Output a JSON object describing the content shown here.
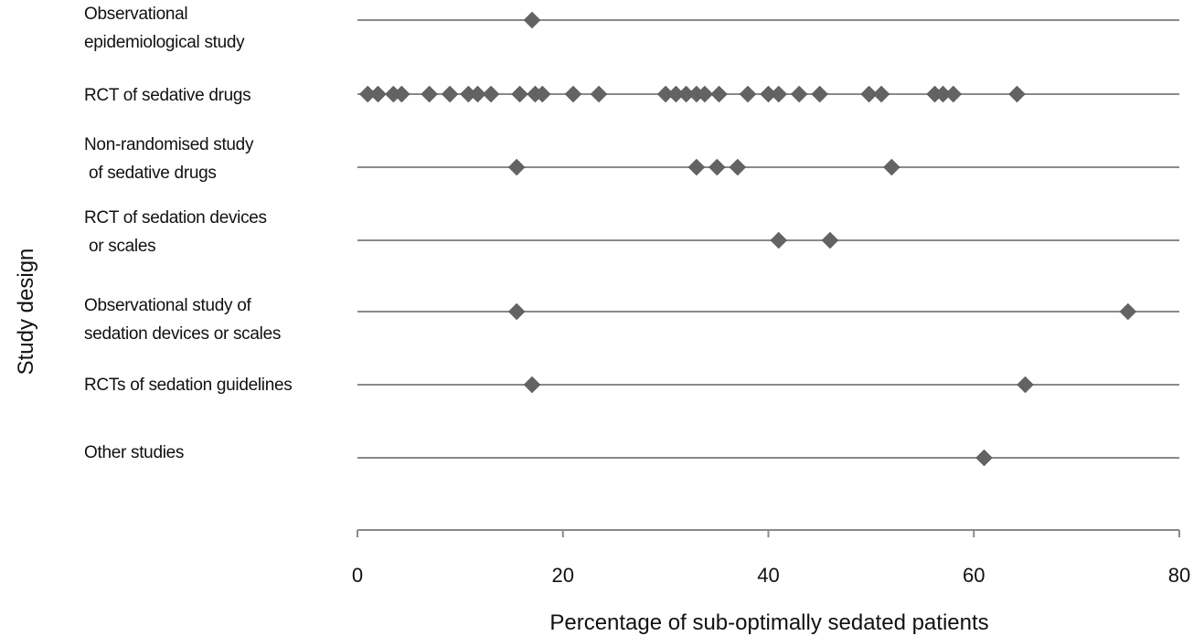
{
  "chart_data": {
    "type": "scatter",
    "xlabel": "Percentage of sub-optimally sedated patients",
    "ylabel": "Study design",
    "xlim": [
      0,
      80
    ],
    "xticks": [
      0,
      20,
      40,
      60,
      80
    ],
    "grid": false,
    "categories": [
      {
        "label_lines": [
          "Observational",
          "epidemiological study"
        ]
      },
      {
        "label_lines": [
          "RCT of sedative drugs"
        ]
      },
      {
        "label_lines": [
          "Non-randomised study",
          " of sedative drugs"
        ]
      },
      {
        "label_lines": [
          "RCT of sedation devices",
          " or scales"
        ]
      },
      {
        "label_lines": [
          "Observational study of",
          "sedation devices or scales"
        ]
      },
      {
        "label_lines": [
          "RCTs of sedation guidelines"
        ]
      },
      {
        "label_lines": [
          "Other studies"
        ]
      }
    ],
    "series": [
      {
        "category_index": 0,
        "values": [
          17
        ]
      },
      {
        "category_index": 1,
        "values": [
          1,
          2,
          3.5,
          4.3,
          7,
          9,
          10.8,
          11.7,
          13,
          15.8,
          17.3,
          18,
          21,
          23.5,
          30,
          31,
          32,
          33,
          33.8,
          35.2,
          38,
          40,
          41,
          43,
          45,
          49.8,
          51,
          56.2,
          57,
          58,
          64.2
        ]
      },
      {
        "category_index": 2,
        "values": [
          15.5,
          33,
          35,
          37,
          52
        ]
      },
      {
        "category_index": 3,
        "values": [
          41,
          46
        ]
      },
      {
        "category_index": 4,
        "values": [
          15.5,
          75
        ]
      },
      {
        "category_index": 5,
        "values": [
          17,
          65
        ]
      },
      {
        "category_index": 6,
        "values": [
          61
        ]
      }
    ]
  }
}
